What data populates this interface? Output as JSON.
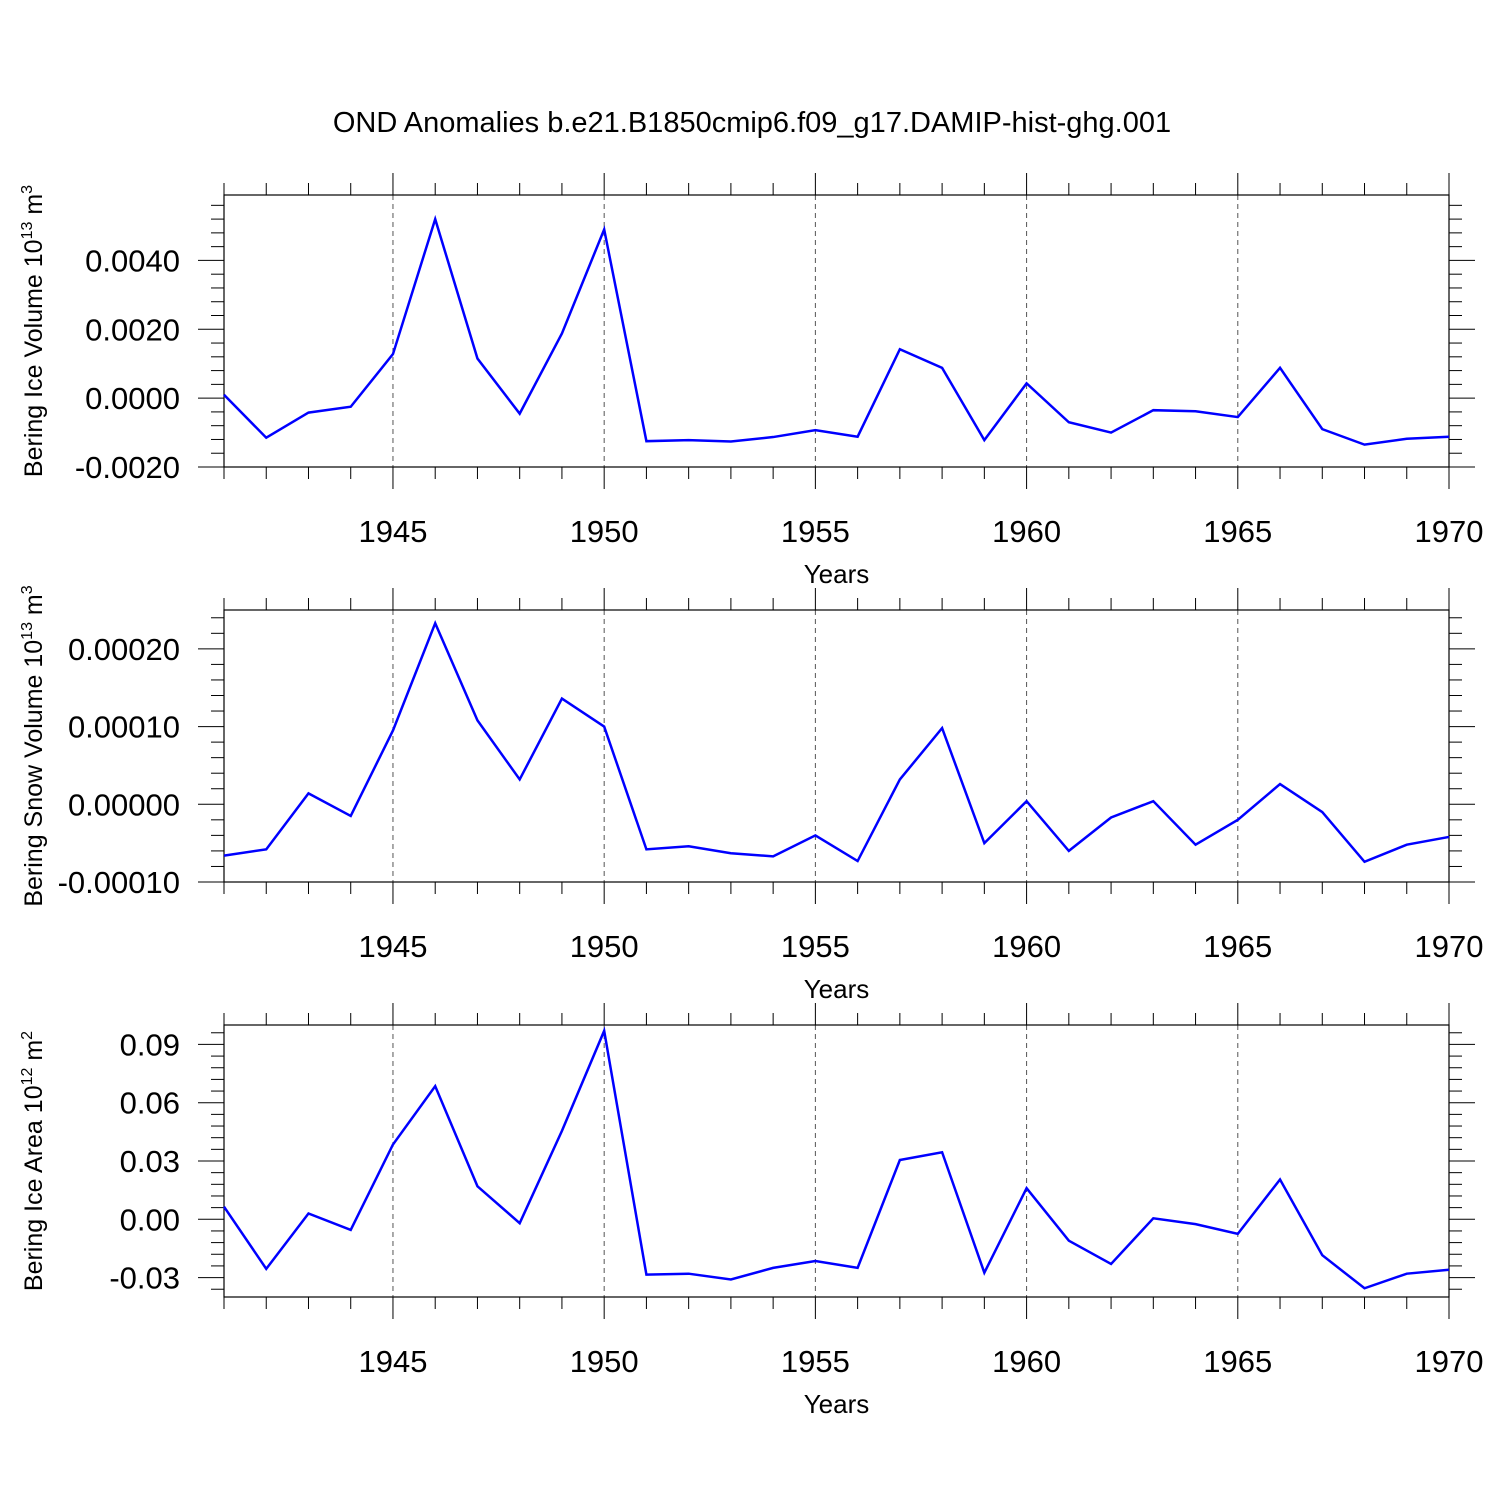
{
  "figure": {
    "title": "OND Anomalies b.e21.B1850cmip6.f09_g17.DAMIP-hist-ghg.001"
  },
  "style": {
    "line_color": "#0000ff",
    "axis_color": "#000000",
    "grid_color": "#555555",
    "background": "#ffffff"
  },
  "chart_data": [
    {
      "type": "line",
      "title": "",
      "xlabel": "Years",
      "ylabel_main": "Bering Ice Volume 10",
      "ylabel_exp": "13",
      "ylabel_unit": " m",
      "ylabel_unit_exp": "3",
      "xlim": [
        1941,
        1970
      ],
      "ylim": [
        -0.002,
        0.0059
      ],
      "xticks": [
        "1945",
        "1950",
        "1955",
        "1960",
        "1965",
        "1970"
      ],
      "yticks": [
        "-0.0020",
        "0.0000",
        "0.0020",
        "0.0040"
      ],
      "grid": "vertical-dashed",
      "x": [
        1941,
        1942,
        1943,
        1944,
        1945,
        1946,
        1947,
        1948,
        1949,
        1950,
        1951,
        1952,
        1953,
        1954,
        1955,
        1956,
        1957,
        1958,
        1959,
        1960,
        1961,
        1962,
        1963,
        1964,
        1965,
        1966,
        1967,
        1968,
        1969,
        1970
      ],
      "series": [
        {
          "values": [
            0.0001,
            -0.00115,
            -0.00042,
            -0.00025,
            0.00128,
            0.0052,
            0.00115,
            -0.00045,
            0.00188,
            0.0049,
            -0.00125,
            -0.00122,
            -0.00126,
            -0.00113,
            -0.00093,
            -0.00112,
            0.00142,
            0.00088,
            -0.00122,
            0.00043,
            -0.0007,
            -0.001,
            -0.00035,
            -0.00038,
            -0.00055,
            0.00088,
            -0.0009,
            -0.00135,
            -0.00118,
            -0.00112
          ]
        }
      ]
    },
    {
      "type": "line",
      "title": "",
      "xlabel": "Years",
      "ylabel_main": "Bering Snow Volume 10",
      "ylabel_exp": "13",
      "ylabel_unit": " m",
      "ylabel_unit_exp": "3",
      "xlim": [
        1941,
        1970
      ],
      "ylim": [
        -0.0001,
        0.00025
      ],
      "xticks": [
        "1945",
        "1950",
        "1955",
        "1960",
        "1965",
        "1970"
      ],
      "yticks": [
        "-0.00010",
        "0.00000",
        "0.00010",
        "0.00020"
      ],
      "grid": "vertical-dashed",
      "x": [
        1941,
        1942,
        1943,
        1944,
        1945,
        1946,
        1947,
        1948,
        1949,
        1950,
        1951,
        1952,
        1953,
        1954,
        1955,
        1956,
        1957,
        1958,
        1959,
        1960,
        1961,
        1962,
        1963,
        1964,
        1965,
        1966,
        1967,
        1968,
        1969,
        1970
      ],
      "series": [
        {
          "values": [
            -6.6e-05,
            -5.8e-05,
            1.4e-05,
            -1.5e-05,
            9.5e-05,
            0.000233,
            0.000108,
            3.2e-05,
            0.000136,
            0.0001,
            -5.8e-05,
            -5.4e-05,
            -6.3e-05,
            -6.7e-05,
            -4e-05,
            -7.3e-05,
            3.2e-05,
            9.8e-05,
            -5e-05,
            4e-06,
            -6e-05,
            -1.7e-05,
            4e-06,
            -5.2e-05,
            -2e-05,
            2.6e-05,
            -1e-05,
            -7.4e-05,
            -5.2e-05,
            -4.2e-05
          ]
        }
      ]
    },
    {
      "type": "line",
      "title": "",
      "xlabel": "Years",
      "ylabel_main": "Bering Ice Area 10",
      "ylabel_exp": "12",
      "ylabel_unit": " m",
      "ylabel_unit_exp": "2",
      "xlim": [
        1941,
        1970
      ],
      "ylim": [
        -0.04,
        0.1
      ],
      "xticks": [
        "1945",
        "1950",
        "1955",
        "1960",
        "1965",
        "1970"
      ],
      "yticks": [
        "-0.03",
        "0.00",
        "0.03",
        "0.06",
        "0.09"
      ],
      "grid": "vertical-dashed",
      "x": [
        1941,
        1942,
        1943,
        1944,
        1945,
        1946,
        1947,
        1948,
        1949,
        1950,
        1951,
        1952,
        1953,
        1954,
        1955,
        1956,
        1957,
        1958,
        1959,
        1960,
        1961,
        1962,
        1963,
        1964,
        1965,
        1966,
        1967,
        1968,
        1969,
        1970
      ],
      "series": [
        {
          "values": [
            0.0065,
            -0.0255,
            0.003,
            -0.0055,
            0.0385,
            0.0685,
            0.017,
            -0.002,
            0.0455,
            0.097,
            -0.0285,
            -0.028,
            -0.031,
            -0.025,
            -0.0215,
            -0.025,
            0.0305,
            0.0345,
            -0.0275,
            0.016,
            -0.011,
            -0.023,
            0.0005,
            -0.0025,
            -0.0075,
            0.0205,
            -0.0185,
            -0.0355,
            -0.028,
            -0.026
          ]
        }
      ]
    }
  ]
}
